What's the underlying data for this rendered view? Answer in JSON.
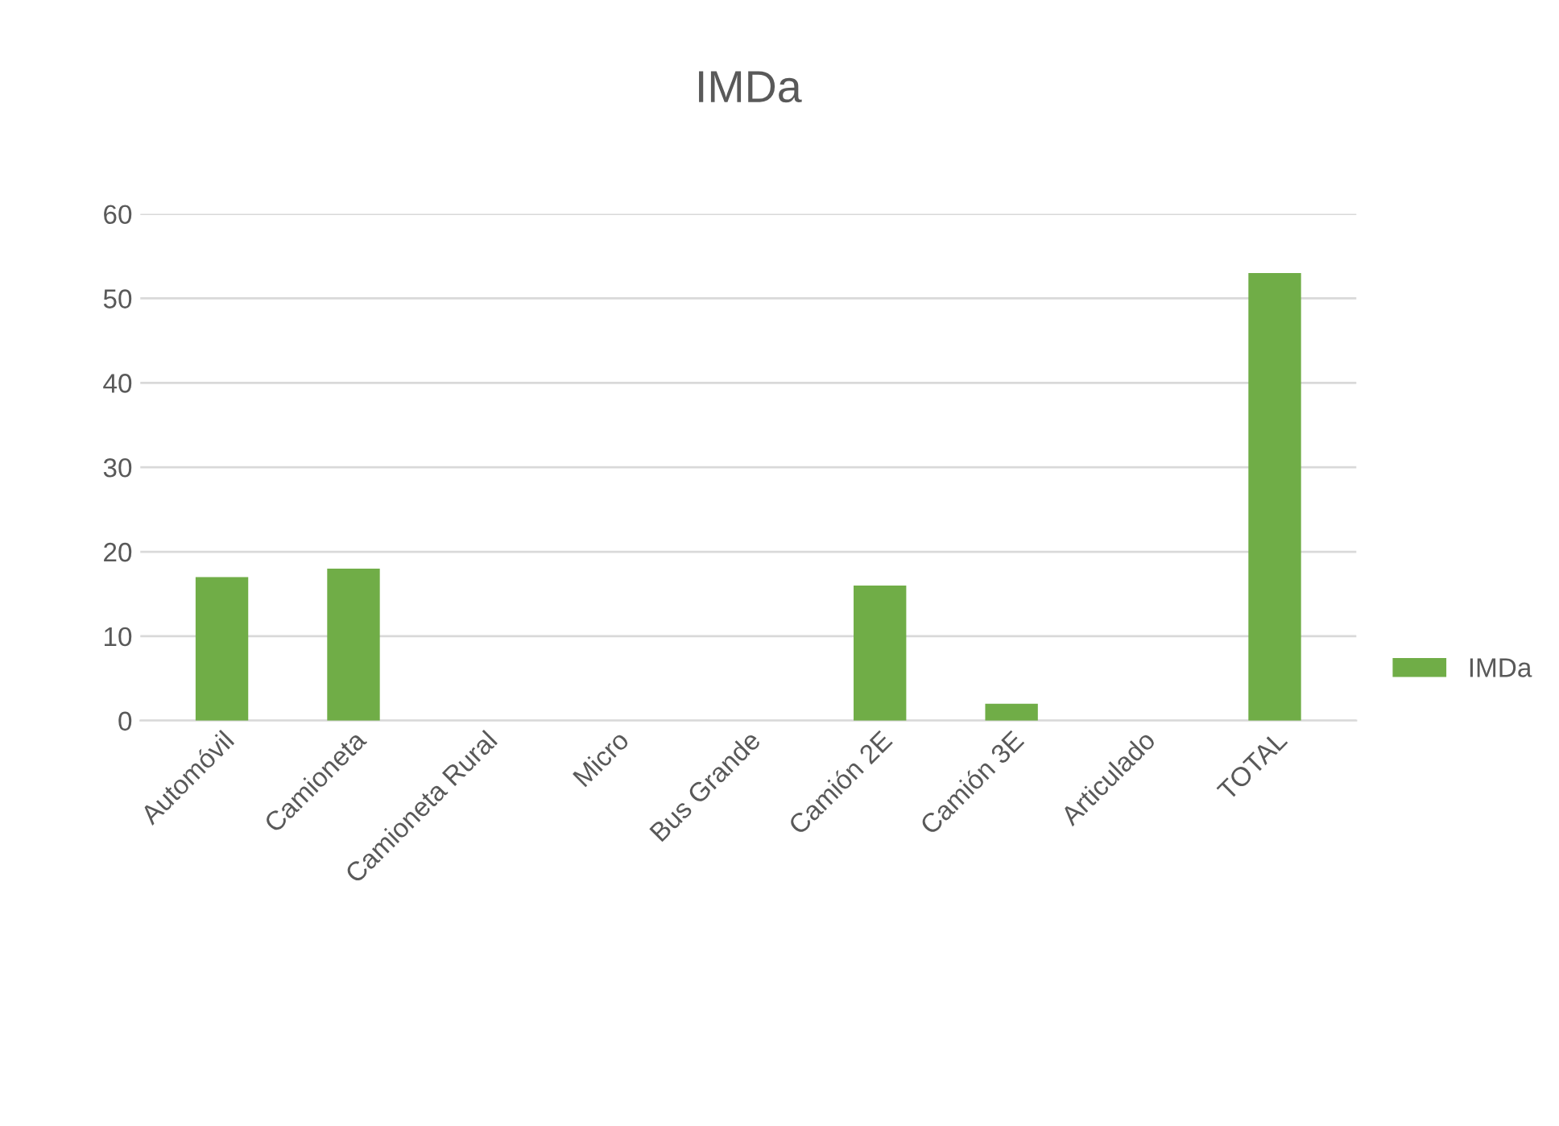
{
  "chart_data": {
    "type": "bar",
    "title": "IMDa",
    "categories": [
      "Automóvil",
      "Camioneta",
      "Camioneta Rural",
      "Micro",
      "Bus Grande",
      "Camión 2E",
      "Camión 3E",
      "Articulado",
      "TOTAL"
    ],
    "series": [
      {
        "name": "IMDa",
        "color": "#70ad47",
        "values": [
          17,
          18,
          0,
          0,
          0,
          16,
          2,
          0,
          53
        ]
      }
    ],
    "ylim": [
      0,
      60
    ],
    "yticks": [
      0,
      10,
      20,
      30,
      40,
      50,
      60
    ],
    "grid": "y",
    "legend": "right"
  }
}
